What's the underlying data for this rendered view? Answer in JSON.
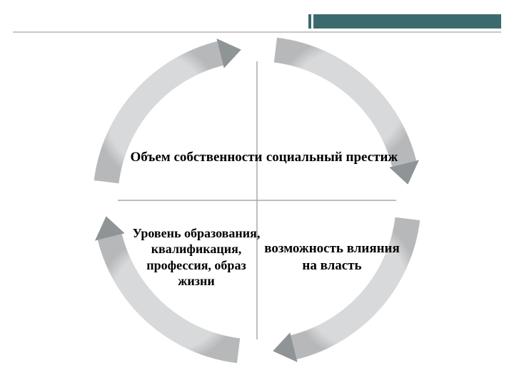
{
  "header": {
    "bar_color": "#3a6a6e",
    "underline_color": "#c8c8c8"
  },
  "diagram": {
    "type": "cycle",
    "ring_outer_radius": 230,
    "ring_inner_radius": 195,
    "arc_color_light": "#d8d9da",
    "arc_color_dark": "#b7b8ba",
    "arrow_head_color": "#8f9497",
    "divider_color": "#a8a9ab",
    "background_color": "#ffffff",
    "quadrants": {
      "top_left": "Объем собственности",
      "top_right": "социальный престиж",
      "bottom_left": "Уровень образования, квалификация, профессия, образ жизни",
      "bottom_right": "возможность влияния на власть"
    },
    "label_fontsize": 19,
    "label_color": "#000000",
    "font_family": "Georgia"
  }
}
